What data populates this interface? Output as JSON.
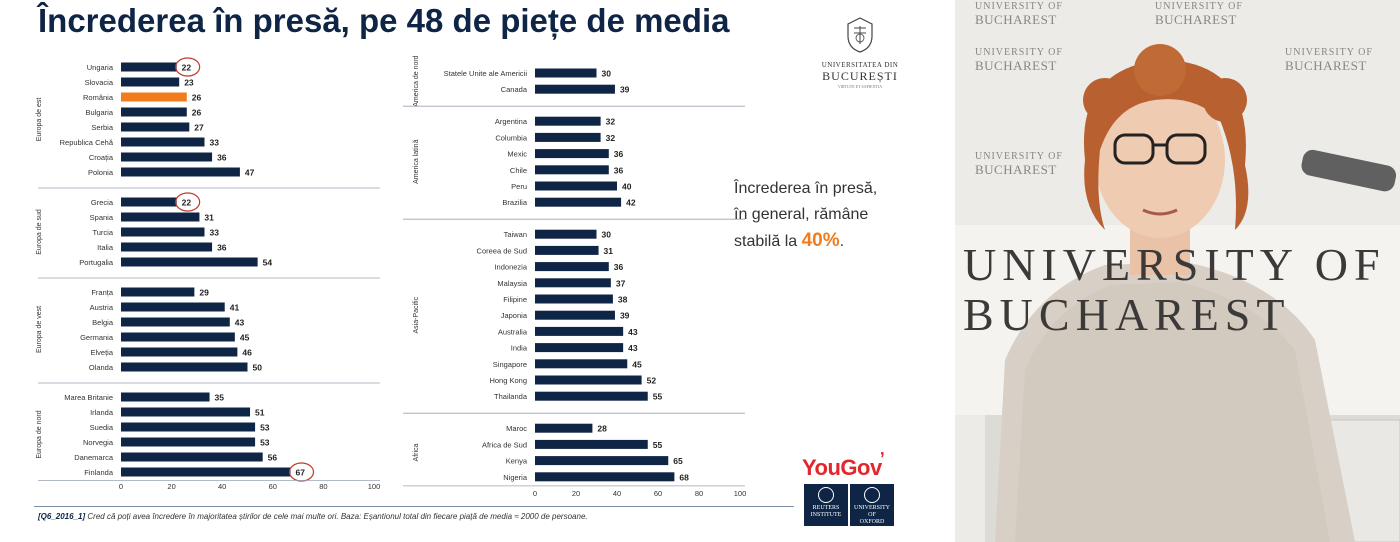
{
  "title": "Încrederea în presă, pe 48 de piețe de media",
  "callout": {
    "line1": "Încrederea în presă,",
    "line2": "în general, rămâne",
    "line3_prefix": "stabilă la ",
    "highlight": "40%",
    "suffix": "."
  },
  "logos": {
    "unibuc_line1": "UNIVERSITATEA DIN",
    "unibuc_line2": "BUCUREȘTI",
    "unibuc_line3": "VIRTUTE ET SAPIENTIA",
    "yougov": "YouGov",
    "reuters_line1": "REUTERS",
    "reuters_line2": "INSTITUTE",
    "oxford_line1": "UNIVERSITY OF",
    "oxford_line2": "OXFORD"
  },
  "footnote": {
    "code": "[Q6_2016_1]",
    "text": "Cred că poți avea încredere în majoritatea știrilor de cele mai multe ori. Baza: Eșantionul total din fiecare piață de media ≈ 2000 de persoane."
  },
  "video": {
    "watermark_line1": "UNIVERSITY OF",
    "watermark_line2": "BUCHAREST",
    "big_text_line1": "UNIVERSITY OF",
    "big_text_line2": "BUCHAREST"
  },
  "colors": {
    "bar": "#0f2545",
    "highlight_bar": "#f07c1e",
    "circle": "#c0392b",
    "axis": "#9aa5b5"
  },
  "chart_data": [
    {
      "type": "bar",
      "orientation": "horizontal",
      "xlim": [
        0,
        100
      ],
      "ticks": [
        0,
        20,
        40,
        60,
        80,
        100
      ],
      "groups": [
        {
          "name": "Europa de est",
          "categories": [
            "Ungaria",
            "Slovacia",
            "România",
            "Bulgaria",
            "Serbia",
            "Republica Cehă",
            "Croația",
            "Polonia"
          ],
          "values": [
            22,
            23,
            26,
            26,
            27,
            33,
            36,
            47
          ],
          "highlight": [
            "România"
          ],
          "circled": [
            "Ungaria"
          ]
        },
        {
          "name": "Europa de sud",
          "categories": [
            "Grecia",
            "Spania",
            "Turcia",
            "Italia",
            "Portugalia"
          ],
          "values": [
            22,
            31,
            33,
            36,
            54
          ],
          "circled": [
            "Grecia"
          ]
        },
        {
          "name": "Europa de vest",
          "categories": [
            "Franța",
            "Austria",
            "Belgia",
            "Germania",
            "Elveția",
            "Olanda"
          ],
          "values": [
            29,
            41,
            43,
            45,
            46,
            50
          ]
        },
        {
          "name": "Europa de nord",
          "categories": [
            "Marea Britanie",
            "Irlanda",
            "Suedia",
            "Norvegia",
            "Danemarca",
            "Finlanda"
          ],
          "values": [
            35,
            51,
            53,
            53,
            56,
            67
          ],
          "circled": [
            "Finlanda"
          ]
        }
      ]
    },
    {
      "type": "bar",
      "orientation": "horizontal",
      "xlim": [
        0,
        100
      ],
      "ticks": [
        0,
        20,
        40,
        60,
        80,
        100
      ],
      "groups": [
        {
          "name": "America de nord",
          "categories": [
            "Statele Unite ale Americii",
            "Canada"
          ],
          "values": [
            30,
            39
          ]
        },
        {
          "name": "America latină",
          "categories": [
            "Argentina",
            "Columbia",
            "Mexic",
            "Chile",
            "Peru",
            "Brazilia"
          ],
          "values": [
            32,
            32,
            36,
            36,
            40,
            42
          ]
        },
        {
          "name": "Asia-Pacific",
          "categories": [
            "Taiwan",
            "Coreea de Sud",
            "Indonezia",
            "Malaysia",
            "Filipine",
            "Japonia",
            "Australia",
            "India",
            "Singapore",
            "Hong Kong",
            "Thailanda"
          ],
          "values": [
            30,
            31,
            36,
            37,
            38,
            39,
            43,
            43,
            45,
            52,
            55
          ]
        },
        {
          "name": "Africa",
          "categories": [
            "Maroc",
            "Africa de Sud",
            "Kenya",
            "Nigeria"
          ],
          "values": [
            28,
            55,
            65,
            68
          ]
        }
      ]
    }
  ]
}
